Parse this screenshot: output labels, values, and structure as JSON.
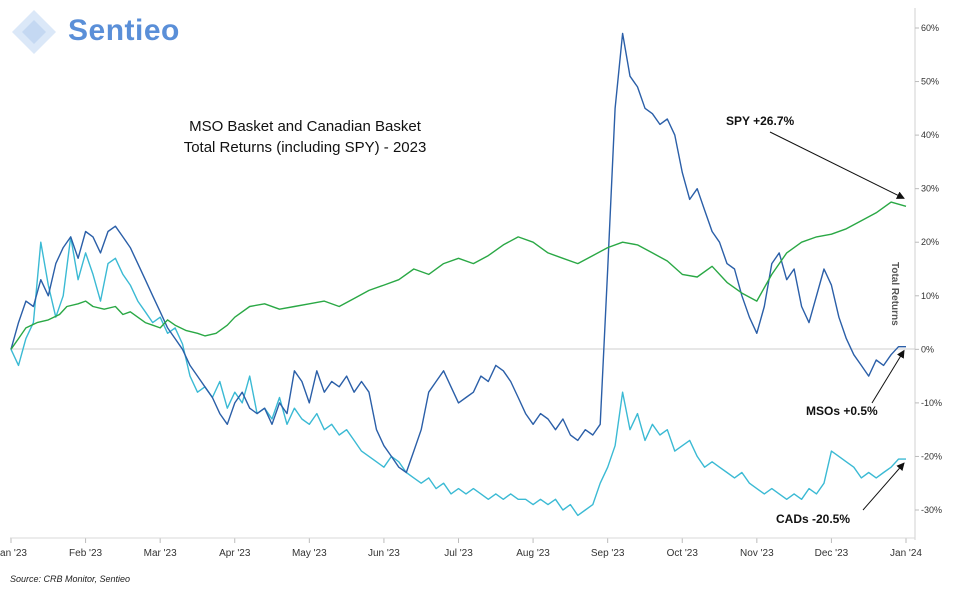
{
  "logo": {
    "text": "Sentieo",
    "color": "#5a8fd8"
  },
  "source": "Source: CRB Monitor, Sentieo",
  "chart_data": {
    "type": "line",
    "title_lines": [
      "MSO Basket and Canadian Basket",
      "Total Returns (including SPY) - 2023"
    ],
    "ylabel": "Total Returns",
    "xlabel": "",
    "x_ticks": [
      "Jan '23",
      "Feb '23",
      "Mar '23",
      "Apr '23",
      "May '23",
      "Jun '23",
      "Jul '23",
      "Aug '23",
      "Sep '23",
      "Oct '23",
      "Nov '23",
      "Dec '23",
      "Jan '24"
    ],
    "y_ticks": [
      "60%",
      "50%",
      "40%",
      "30%",
      "20%",
      "10%",
      "0%",
      "-10%",
      "-20%",
      "-30%"
    ],
    "ylim": [
      -35,
      63
    ],
    "grid": false,
    "x_unit": "month index from Jan '23",
    "series": [
      {
        "name": "SPY",
        "color": "#2aa845",
        "x": [
          0,
          0.1,
          0.2,
          0.35,
          0.5,
          0.65,
          0.75,
          0.9,
          1.0,
          1.1,
          1.25,
          1.4,
          1.5,
          1.6,
          1.7,
          1.8,
          1.9,
          2.0,
          2.1,
          2.2,
          2.35,
          2.5,
          2.6,
          2.75,
          2.9,
          3.0,
          3.2,
          3.4,
          3.6,
          3.8,
          4.0,
          4.2,
          4.4,
          4.6,
          4.8,
          5.0,
          5.2,
          5.4,
          5.6,
          5.8,
          6.0,
          6.2,
          6.4,
          6.6,
          6.8,
          7.0,
          7.2,
          7.4,
          7.6,
          7.8,
          8.0,
          8.2,
          8.4,
          8.6,
          8.8,
          9.0,
          9.2,
          9.4,
          9.6,
          9.8,
          10.0,
          10.2,
          10.4,
          10.6,
          10.8,
          11.0,
          11.2,
          11.4,
          11.6,
          11.8,
          12.0
        ],
        "values": [
          0,
          2,
          4,
          5,
          5.5,
          6.5,
          8,
          8.5,
          9,
          8,
          7.5,
          8,
          6.5,
          7,
          6,
          5,
          4.5,
          4,
          5.5,
          4.5,
          3.5,
          3,
          2.5,
          3,
          4.5,
          6,
          8,
          8.5,
          7.5,
          8,
          8.5,
          9,
          8,
          9.5,
          11,
          12,
          13,
          15,
          14,
          16,
          17,
          16,
          17.5,
          19.5,
          21,
          20,
          18,
          17,
          16,
          17.5,
          19,
          20,
          19.5,
          18,
          16.5,
          14,
          13.5,
          15.5,
          12.5,
          10.5,
          9,
          14,
          18,
          20,
          21,
          21.5,
          22.5,
          24,
          25.5,
          27.5,
          26.7
        ]
      },
      {
        "name": "MSOs",
        "color": "#2b5fa8",
        "x": [
          0,
          0.1,
          0.2,
          0.3,
          0.4,
          0.5,
          0.6,
          0.7,
          0.8,
          0.9,
          1.0,
          1.1,
          1.2,
          1.3,
          1.4,
          1.5,
          1.6,
          1.7,
          1.8,
          1.9,
          2.0,
          2.1,
          2.2,
          2.3,
          2.4,
          2.5,
          2.6,
          2.7,
          2.8,
          2.9,
          3.0,
          3.1,
          3.2,
          3.3,
          3.4,
          3.5,
          3.6,
          3.7,
          3.8,
          3.9,
          4.0,
          4.1,
          4.2,
          4.3,
          4.4,
          4.5,
          4.6,
          4.7,
          4.8,
          4.9,
          5.0,
          5.1,
          5.2,
          5.3,
          5.4,
          5.5,
          5.6,
          5.7,
          5.8,
          5.9,
          6.0,
          6.1,
          6.2,
          6.3,
          6.4,
          6.5,
          6.6,
          6.7,
          6.8,
          6.9,
          7.0,
          7.1,
          7.2,
          7.3,
          7.4,
          7.5,
          7.6,
          7.7,
          7.8,
          7.9,
          8.0,
          8.1,
          8.2,
          8.3,
          8.4,
          8.5,
          8.6,
          8.7,
          8.8,
          8.9,
          9.0,
          9.1,
          9.2,
          9.3,
          9.4,
          9.5,
          9.6,
          9.7,
          9.8,
          9.9,
          10.0,
          10.1,
          10.2,
          10.3,
          10.4,
          10.5,
          10.6,
          10.7,
          10.8,
          10.9,
          11.0,
          11.1,
          11.2,
          11.3,
          11.4,
          11.5,
          11.6,
          11.7,
          11.8,
          11.9,
          12.0
        ],
        "values": [
          0,
          5,
          9,
          8,
          13,
          10,
          16,
          19,
          21,
          17,
          22,
          21,
          18,
          22,
          23,
          21,
          19,
          16,
          13,
          10,
          7,
          4,
          2,
          0,
          -3,
          -5,
          -7,
          -9,
          -12,
          -14,
          -10,
          -8,
          -11,
          -12,
          -11,
          -14,
          -10,
          -12,
          -4,
          -6,
          -10,
          -4,
          -8,
          -6,
          -7,
          -5,
          -8,
          -6,
          -8,
          -15,
          -18,
          -20,
          -22,
          -23,
          -19,
          -15,
          -8,
          -6,
          -4,
          -7,
          -10,
          -9,
          -8,
          -5,
          -6,
          -3,
          -4,
          -6,
          -9,
          -12,
          -14,
          -12,
          -13,
          -15,
          -13,
          -16,
          -17,
          -15,
          -16,
          -14,
          15,
          45,
          59,
          51,
          49,
          45,
          44,
          42,
          43,
          40,
          33,
          28,
          30,
          26,
          22,
          20,
          16,
          15,
          10,
          6,
          3,
          8,
          16,
          18,
          13,
          15,
          8,
          5,
          10,
          15,
          12,
          6,
          2,
          -1,
          -3,
          -5,
          -2,
          -3,
          -1,
          0.5,
          0.5
        ]
      },
      {
        "name": "CADs",
        "color": "#3bbad4",
        "x": [
          0,
          0.1,
          0.2,
          0.3,
          0.4,
          0.5,
          0.6,
          0.7,
          0.8,
          0.9,
          1.0,
          1.1,
          1.2,
          1.3,
          1.4,
          1.5,
          1.6,
          1.7,
          1.8,
          1.9,
          2.0,
          2.1,
          2.2,
          2.3,
          2.4,
          2.5,
          2.6,
          2.7,
          2.8,
          2.9,
          3.0,
          3.1,
          3.2,
          3.3,
          3.4,
          3.5,
          3.6,
          3.7,
          3.8,
          3.9,
          4.0,
          4.1,
          4.2,
          4.3,
          4.4,
          4.5,
          4.6,
          4.7,
          4.8,
          4.9,
          5.0,
          5.1,
          5.2,
          5.3,
          5.4,
          5.5,
          5.6,
          5.7,
          5.8,
          5.9,
          6.0,
          6.1,
          6.2,
          6.3,
          6.4,
          6.5,
          6.6,
          6.7,
          6.8,
          6.9,
          7.0,
          7.1,
          7.2,
          7.3,
          7.4,
          7.5,
          7.6,
          7.7,
          7.8,
          7.9,
          8.0,
          8.1,
          8.2,
          8.3,
          8.4,
          8.5,
          8.6,
          8.7,
          8.8,
          8.9,
          9.0,
          9.1,
          9.2,
          9.3,
          9.4,
          9.5,
          9.6,
          9.7,
          9.8,
          9.9,
          10.0,
          10.1,
          10.2,
          10.3,
          10.4,
          10.5,
          10.6,
          10.7,
          10.8,
          10.9,
          11.0,
          11.1,
          11.2,
          11.3,
          11.4,
          11.5,
          11.6,
          11.7,
          11.8,
          11.9,
          12.0
        ],
        "values": [
          0,
          -3,
          2,
          5,
          20,
          12,
          6,
          10,
          21,
          13,
          18,
          14,
          9,
          16,
          17,
          14,
          12,
          9,
          7,
          5,
          6,
          3,
          4,
          1,
          -5,
          -8,
          -7,
          -9,
          -6,
          -11,
          -8,
          -10,
          -5,
          -12,
          -11,
          -13,
          -9,
          -14,
          -11,
          -13,
          -14,
          -12,
          -15,
          -14,
          -16,
          -15,
          -17,
          -19,
          -20,
          -21,
          -22,
          -20,
          -21,
          -23,
          -24,
          -25,
          -24,
          -26,
          -25,
          -27,
          -26,
          -27,
          -26,
          -27,
          -28,
          -27,
          -28,
          -27,
          -28,
          -28,
          -29,
          -28,
          -29,
          -28,
          -30,
          -29,
          -31,
          -30,
          -29,
          -25,
          -22,
          -18,
          -8,
          -15,
          -12,
          -17,
          -14,
          -16,
          -15,
          -19,
          -18,
          -17,
          -20,
          -22,
          -21,
          -22,
          -23,
          -24,
          -23,
          -25,
          -26,
          -27,
          -26,
          -27,
          -28,
          -27,
          -28,
          -26,
          -27,
          -25,
          -19,
          -20,
          -21,
          -22,
          -24,
          -23,
          -24,
          -23,
          -22,
          -20.5,
          -20.5
        ]
      }
    ],
    "annotations": [
      {
        "text": "SPY +26.7%",
        "series": "SPY"
      },
      {
        "text": "MSOs +0.5%",
        "series": "MSOs"
      },
      {
        "text": "CADs -20.5%",
        "series": "CADs"
      }
    ]
  }
}
